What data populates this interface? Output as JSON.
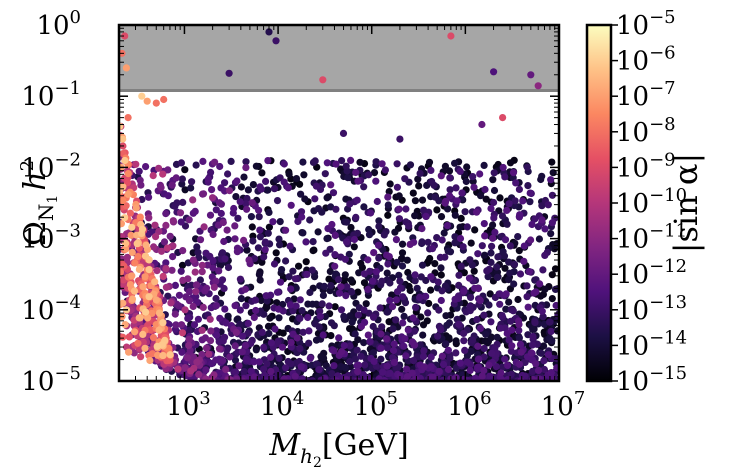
{
  "chart_data": {
    "type": "scatter",
    "title": "",
    "xlabel": {
      "base": "M",
      "sub": "h",
      "subsub": "2",
      "unit": "[GeV]"
    },
    "ylabel": {
      "base": "Ω",
      "sub": "N",
      "subsub": "1",
      "tail": "h",
      "sup": "2"
    },
    "colorbar_label": "|sin α|",
    "x_scale": "log",
    "y_scale": "log",
    "xlim": [
      200,
      10000000
    ],
    "ylim": [
      1e-05,
      1
    ],
    "clim": [
      1e-15,
      1e-05
    ],
    "x_ticks": [
      {
        "value": 1000,
        "base": "10",
        "exp": "3"
      },
      {
        "value": 10000,
        "base": "10",
        "exp": "4"
      },
      {
        "value": 100000,
        "base": "10",
        "exp": "5"
      },
      {
        "value": 1000000,
        "base": "10",
        "exp": "6"
      },
      {
        "value": 10000000,
        "base": "10",
        "exp": "7"
      }
    ],
    "y_ticks": [
      {
        "value": 1e-05,
        "base": "10",
        "exp": "−5"
      },
      {
        "value": 0.0001,
        "base": "10",
        "exp": "−4"
      },
      {
        "value": 0.001,
        "base": "10",
        "exp": "−3"
      },
      {
        "value": 0.01,
        "base": "10",
        "exp": "−2"
      },
      {
        "value": 0.1,
        "base": "10",
        "exp": "−1"
      },
      {
        "value": 1,
        "base": "10",
        "exp": "0"
      }
    ],
    "colorbar_ticks": [
      {
        "value": 1e-05,
        "base": "10",
        "exp": "−5"
      },
      {
        "value": 1e-06,
        "base": "10",
        "exp": "−6"
      },
      {
        "value": 1e-07,
        "base": "10",
        "exp": "−7"
      },
      {
        "value": 1e-08,
        "base": "10",
        "exp": "−8"
      },
      {
        "value": 1e-09,
        "base": "10",
        "exp": "−9"
      },
      {
        "value": 1e-10,
        "base": "10",
        "exp": "−10"
      },
      {
        "value": 1e-11,
        "base": "10",
        "exp": "−11"
      },
      {
        "value": 1e-12,
        "base": "10",
        "exp": "−12"
      },
      {
        "value": 1e-13,
        "base": "10",
        "exp": "−13"
      },
      {
        "value": 1e-14,
        "base": "10",
        "exp": "−14"
      },
      {
        "value": 1e-15,
        "base": "10",
        "exp": "−15"
      }
    ],
    "excluded_region": {
      "y_from": 0.12,
      "y_to": 1,
      "color": "#a6a6a6",
      "boundary_color": "#808080"
    },
    "colormap": [
      "#000004",
      "#1c1044",
      "#4f127b",
      "#812581",
      "#b5367a",
      "#e55064",
      "#fb8761",
      "#fec287",
      "#fcfdbf"
    ],
    "points": [
      {
        "x": 8000,
        "y": 0.8,
        "s": 3e-14
      },
      {
        "x": 9500,
        "y": 0.6,
        "s": 1e-13
      },
      {
        "x": 700000,
        "y": 0.7,
        "s": 1e-09
      },
      {
        "x": 3000,
        "y": 0.21,
        "s": 1e-13
      },
      {
        "x": 30000,
        "y": 0.17,
        "s": 1e-09
      },
      {
        "x": 5000000,
        "y": 0.2,
        "s": 1e-12
      },
      {
        "x": 6000000,
        "y": 0.14,
        "s": 1e-11
      },
      {
        "x": 2000000,
        "y": 0.22,
        "s": 3e-13
      },
      {
        "x": 230,
        "y": 0.7,
        "s": 1e-09
      },
      {
        "x": 215,
        "y": 0.4,
        "s": 1e-08
      },
      {
        "x": 240,
        "y": 0.25,
        "s": 1e-07
      },
      {
        "x": 400,
        "y": 0.085,
        "s": 1e-07
      },
      {
        "x": 350,
        "y": 0.1,
        "s": 1e-06
      },
      {
        "x": 500,
        "y": 0.08,
        "s": 1e-08
      },
      {
        "x": 600,
        "y": 0.09,
        "s": 1e-08
      },
      {
        "x": 250,
        "y": 0.05,
        "s": 1e-08
      },
      {
        "x": 220,
        "y": 0.02,
        "s": 1e-09
      },
      {
        "x": 210,
        "y": 0.01,
        "s": 1e-07
      },
      {
        "x": 2500000,
        "y": 0.05,
        "s": 1e-09
      },
      {
        "x": 1500000,
        "y": 0.04,
        "s": 1e-12
      },
      {
        "x": 50000,
        "y": 0.03,
        "s": 1e-13
      },
      {
        "x": 200000,
        "y": 0.025,
        "s": 1e-13
      }
    ],
    "random_cloud": {
      "count": 2800,
      "seed": 7
    }
  }
}
